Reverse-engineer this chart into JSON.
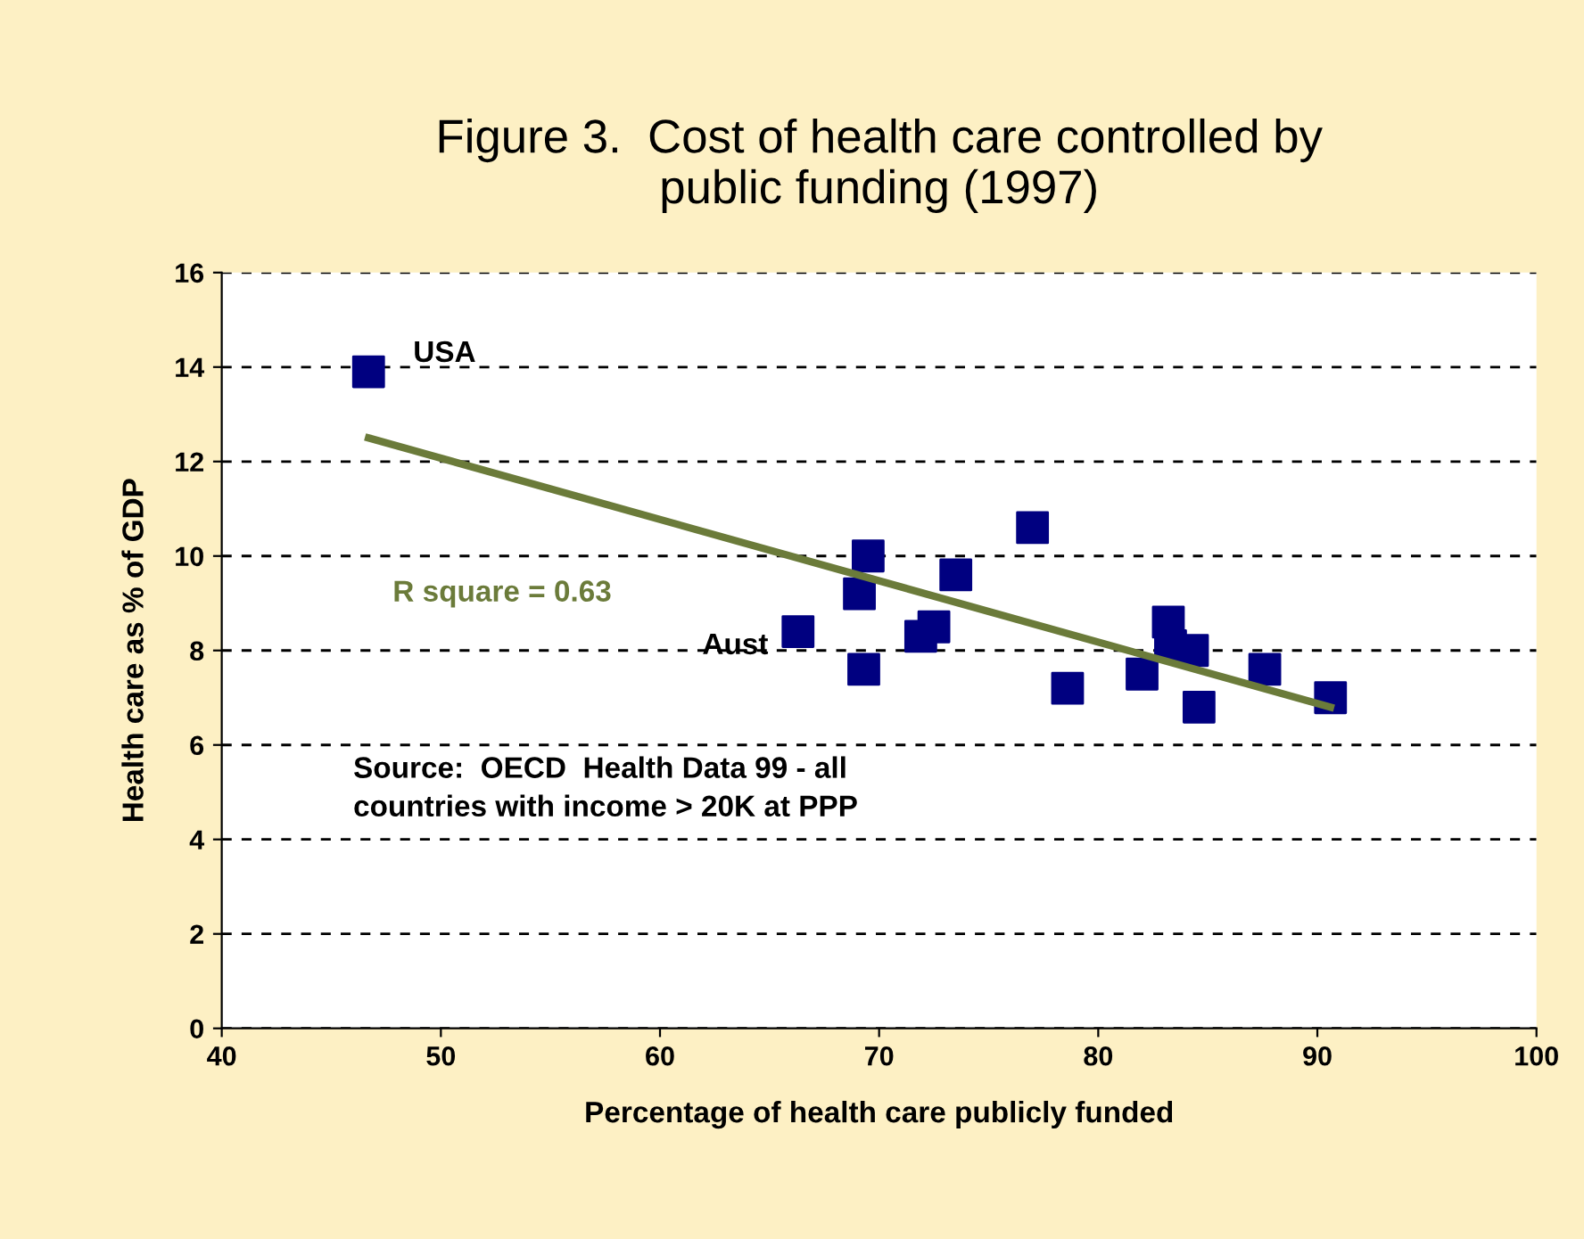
{
  "chart_data": {
    "type": "scatter",
    "title": "Figure 3.  Cost of health care controlled by\npublic funding (1997)",
    "xlabel": "Percentage of health care publicly funded",
    "ylabel": "Health care as % of GDP",
    "series": [
      {
        "color": "#000080",
        "marker": "square",
        "x": [
          46.7,
          66.3,
          69.1,
          69.3,
          69.5,
          71.9,
          72.5,
          73.5,
          77.0,
          78.6,
          82.0,
          83.2,
          83.3,
          84.3,
          84.6,
          87.6,
          90.6
        ],
        "values": [
          13.9,
          8.4,
          9.2,
          7.6,
          10.0,
          8.3,
          8.5,
          9.6,
          10.6,
          7.2,
          7.5,
          8.6,
          8.1,
          8.0,
          6.8,
          7.6,
          7.0
        ]
      },
      {
        "type": "line",
        "color": "#6b7b3a",
        "marker": "none",
        "x": [
          46.7,
          90.6
        ],
        "values": [
          12.5,
          6.8
        ]
      }
    ],
    "xlim": [
      40,
      100
    ],
    "xticks": [
      40,
      50,
      60,
      70,
      80,
      90,
      100
    ],
    "ylim": [
      0,
      16
    ],
    "yticks": [
      0,
      2,
      4,
      6,
      8,
      10,
      12,
      14,
      16
    ],
    "grid": "y",
    "annotations": [
      {
        "text": "USA",
        "x": 46.7,
        "y": 13.9
      },
      {
        "text": "Aust",
        "x": 66.3,
        "y": 8.4
      },
      "R square = 0.63",
      "Source:  OECD  Health Data 99 - all\ncountries with income > 20K at PPP"
    ]
  }
}
